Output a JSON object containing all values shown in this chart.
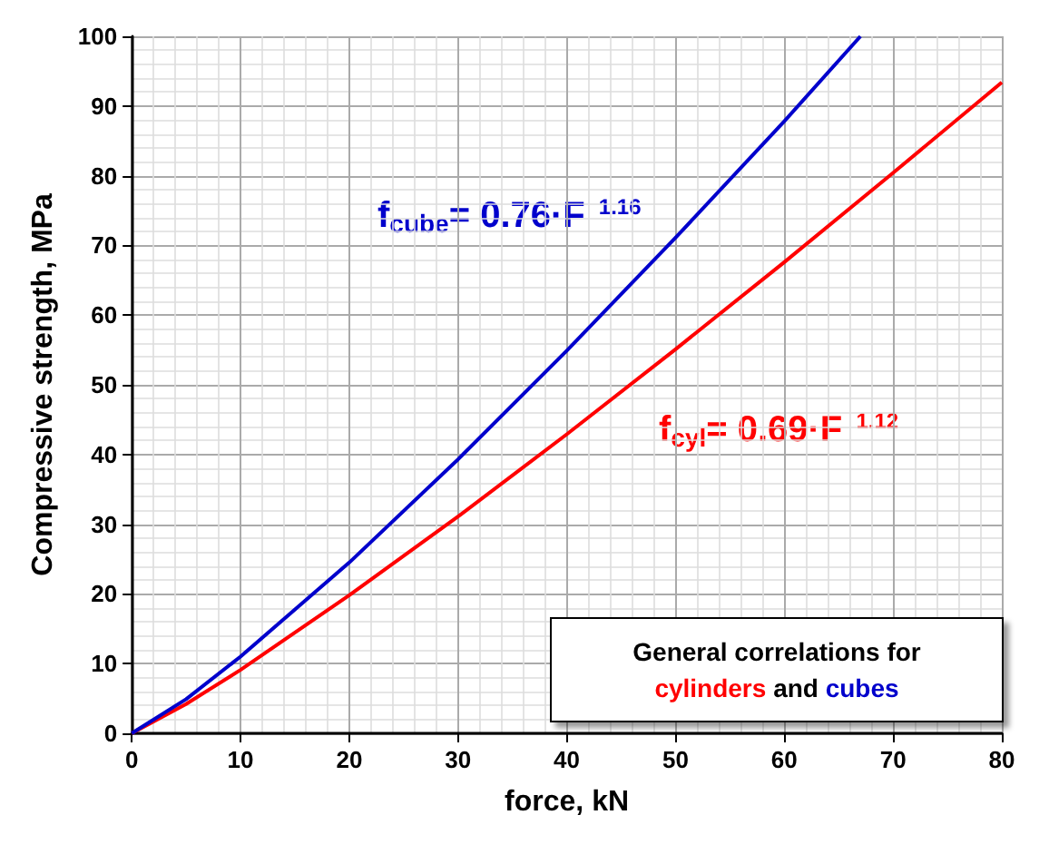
{
  "chart_data": {
    "type": "line",
    "xlabel": "force, kN",
    "ylabel": "Compressive strength, MPa",
    "xlim": [
      0,
      80
    ],
    "xticks": [
      0,
      10,
      20,
      30,
      40,
      50,
      60,
      70,
      80
    ],
    "ylim": [
      0,
      100
    ],
    "yticks": [
      0,
      10,
      20,
      30,
      40,
      50,
      60,
      70,
      80,
      90,
      100
    ],
    "grid": true,
    "marker": "none",
    "line_style": "solid",
    "legend": false,
    "series": [
      {
        "name": "cylinders",
        "color": "#ff0000",
        "x": [
          0,
          5,
          10,
          20,
          30,
          40,
          50,
          60,
          70,
          80
        ],
        "values": [
          0,
          4.2,
          9.1,
          19.8,
          31.1,
          42.9,
          55.1,
          67.6,
          80.4,
          93.4
        ]
      },
      {
        "name": "cubes",
        "color": "#0000cc",
        "x": [
          0,
          5,
          10,
          20,
          30,
          40,
          50,
          60,
          67
        ],
        "values": [
          0,
          4.9,
          11,
          24.5,
          39.3,
          54.9,
          71.1,
          87.8,
          100
        ]
      }
    ],
    "annotations": [
      "f$_{cyl}$= 0.69·F $^{1.12}$",
      "f$_{cube}$= 0.76·F $^{1.16}$",
      "General correlations for",
      "and"
    ]
  }
}
